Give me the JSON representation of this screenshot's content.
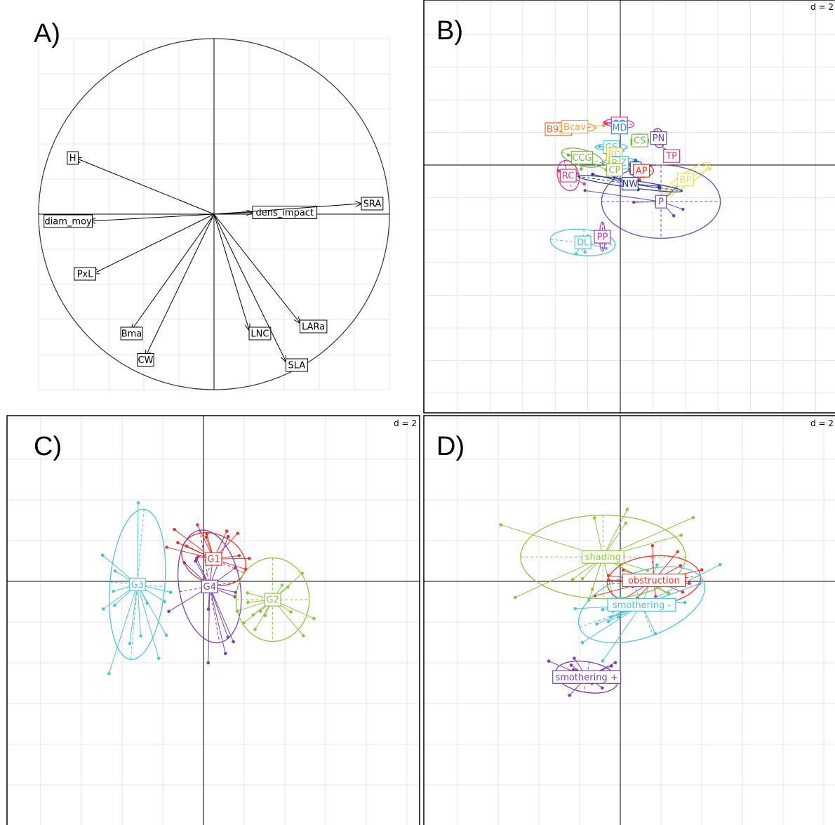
{
  "colors": {
    "grid": "#e6e6e6",
    "axis": "#000000",
    "frame": "#000000",
    "label_bg": "#ffffff"
  },
  "chart_data": [
    {
      "panel": "A)",
      "type": "scatter",
      "subtype": "correlation-circle",
      "grid": true,
      "xlim": [
        -1,
        1
      ],
      "ylim": [
        -1,
        1
      ],
      "variables": [
        {
          "name": "H",
          "x": -0.79,
          "y": 0.32
        },
        {
          "name": "diam_moy",
          "x": -0.71,
          "y": -0.04
        },
        {
          "name": "PxL",
          "x": -0.69,
          "y": -0.34
        },
        {
          "name": "Bma",
          "x": -0.47,
          "y": -0.66
        },
        {
          "name": "CW",
          "x": -0.39,
          "y": -0.81
        },
        {
          "name": "dens_impact",
          "x": 0.22,
          "y": 0.01
        },
        {
          "name": "SRA",
          "x": 0.84,
          "y": 0.06
        },
        {
          "name": "LNC",
          "x": 0.2,
          "y": -0.66
        },
        {
          "name": "LARa",
          "x": 0.49,
          "y": -0.62
        },
        {
          "name": "SLA",
          "x": 0.41,
          "y": -0.84
        }
      ]
    },
    {
      "panel": "B)",
      "type": "scatter",
      "subtype": "class-ellipses",
      "d_label": "d = 2",
      "grid": true,
      "groups": [
        {
          "label": "SG",
          "color": "#e0368a",
          "cx": -0.1,
          "cy": 5.1,
          "rx": 1.8,
          "ry": 0.55,
          "rot": -5
        },
        {
          "label": "MD",
          "color": "#3a8ee0",
          "cx": -0.1,
          "cy": 4.6,
          "rx": 0.5,
          "ry": 0.4,
          "rot": 0
        },
        {
          "label": "B925",
          "color": "#f0662a",
          "cx": -7.6,
          "cy": 4.4,
          "rx": 1.6,
          "ry": 0.35,
          "rot": 0
        },
        {
          "label": "Bcav",
          "color": "#f5a030",
          "cx": -5.6,
          "cy": 4.7,
          "rx": 2.6,
          "ry": 0.6,
          "rot": -3
        },
        {
          "label": "CS",
          "color": "#6cbf3a",
          "cx": 2.4,
          "cy": 3.0,
          "rx": 1.1,
          "ry": 0.8,
          "rot": 0
        },
        {
          "label": "PN",
          "color": "#7b3fb0",
          "cx": 4.7,
          "cy": 3.3,
          "rx": 0.7,
          "ry": 1.2,
          "rot": 10
        },
        {
          "label": "GS",
          "color": "#4ec3d8",
          "cx": -1.1,
          "cy": 2.2,
          "rx": 2.0,
          "ry": 0.4,
          "rot": 0
        },
        {
          "label": "CCG",
          "color": "#6cbf3a",
          "cx": -4.7,
          "cy": 0.9,
          "rx": 2.6,
          "ry": 1.0,
          "rot": -15
        },
        {
          "label": "BD",
          "color": "#e8d334",
          "cx": -0.7,
          "cy": 1.3,
          "rx": 0.4,
          "ry": 0.3,
          "rot": 0
        },
        {
          "label": "CZ",
          "color": "#4ec3d8",
          "cx": 0.0,
          "cy": 0.3,
          "rx": 2.1,
          "ry": 0.6,
          "rot": 0
        },
        {
          "label": "B",
          "color": "#9acd32",
          "cx": -0.7,
          "cy": 0.2,
          "rx": 0.3,
          "ry": 0.3,
          "rot": 0
        },
        {
          "label": "CP",
          "color": "#8dc63f",
          "cx": -0.7,
          "cy": -0.6,
          "rx": 1.0,
          "ry": 1.2,
          "rot": 0
        },
        {
          "label": "TP",
          "color": "#e0368a",
          "cx": 6.3,
          "cy": 1.1,
          "rx": 0.25,
          "ry": 0.3,
          "rot": 0
        },
        {
          "label": "N",
          "color": "#3060c8",
          "cx": 1.9,
          "cy": -0.4,
          "rx": 0.9,
          "ry": 0.9,
          "rot": 0
        },
        {
          "label": "AP",
          "color": "#e8362a",
          "cx": 2.6,
          "cy": -0.7,
          "rx": 1.5,
          "ry": 0.8,
          "rot": 0
        },
        {
          "label": "RC",
          "color": "#e0368a",
          "cx": -6.4,
          "cy": -1.3,
          "rx": 1.3,
          "ry": 1.9,
          "rot": 15
        },
        {
          "label": "BP",
          "color": "#e8e34a",
          "cx": 8.0,
          "cy": -1.8,
          "rx": 3.6,
          "ry": 0.7,
          "rot": 35
        },
        {
          "label": "NW",
          "color": "#2f3a9a",
          "cx": 1.2,
          "cy": -2.3,
          "rx": 6.5,
          "ry": 0.45,
          "rot": -8
        },
        {
          "label": "P",
          "color": "#6a4ab8",
          "cx": 5.0,
          "cy": -4.5,
          "rx": 7.3,
          "ry": 4.5,
          "rot": 0
        },
        {
          "label": "DL",
          "color": "#4ec3d8",
          "cx": -4.6,
          "cy": -9.5,
          "rx": 4.0,
          "ry": 1.6,
          "rot": -5
        },
        {
          "label": "PP",
          "color": "#b03ab0",
          "cx": -2.2,
          "cy": -8.8,
          "rx": 0.35,
          "ry": 1.8,
          "rot": 0
        }
      ]
    },
    {
      "panel": "C)",
      "type": "scatter",
      "subtype": "class-ellipses",
      "d_label": "d = 2",
      "grid": true,
      "groups": [
        {
          "label": "G3",
          "color": "#4ec3d8",
          "cx": -6.5,
          "cy": -0.3,
          "rx": 2.7,
          "ry": 7.4,
          "rot": -5
        },
        {
          "label": "G1",
          "color": "#e8362a",
          "cx": 1.0,
          "cy": 2.2,
          "rx": 3.3,
          "ry": 2.4,
          "rot": -25
        },
        {
          "label": "G4",
          "color": "#7b3fb0",
          "cx": 0.6,
          "cy": -0.5,
          "rx": 3.0,
          "ry": 5.6,
          "rot": 10
        },
        {
          "label": "G2",
          "color": "#8dc63f",
          "cx": 6.8,
          "cy": -1.8,
          "rx": 3.6,
          "ry": 4.1,
          "rot": 0
        }
      ]
    },
    {
      "panel": "D)",
      "type": "scatter",
      "subtype": "class-ellipses",
      "d_label": "d = 2",
      "grid": true,
      "groups": [
        {
          "label": "shading",
          "color": "#8dc63f",
          "cx": -1.7,
          "cy": 2.4,
          "rx": 8.1,
          "ry": 4.1,
          "rot": 0
        },
        {
          "label": "obstruction",
          "color": "#e8362a",
          "cx": 3.3,
          "cy": 0.1,
          "rx": 4.6,
          "ry": 2.4,
          "rot": 5
        },
        {
          "label": "smothering -",
          "color": "#4ec3d8",
          "cx": 2.1,
          "cy": -2.3,
          "rx": 6.5,
          "ry": 3.2,
          "rot": 20
        },
        {
          "label": "smothering +",
          "color": "#7b3fb0",
          "cx": -3.3,
          "cy": -9.4,
          "rx": 3.1,
          "ry": 1.5,
          "rot": -10
        }
      ]
    }
  ]
}
